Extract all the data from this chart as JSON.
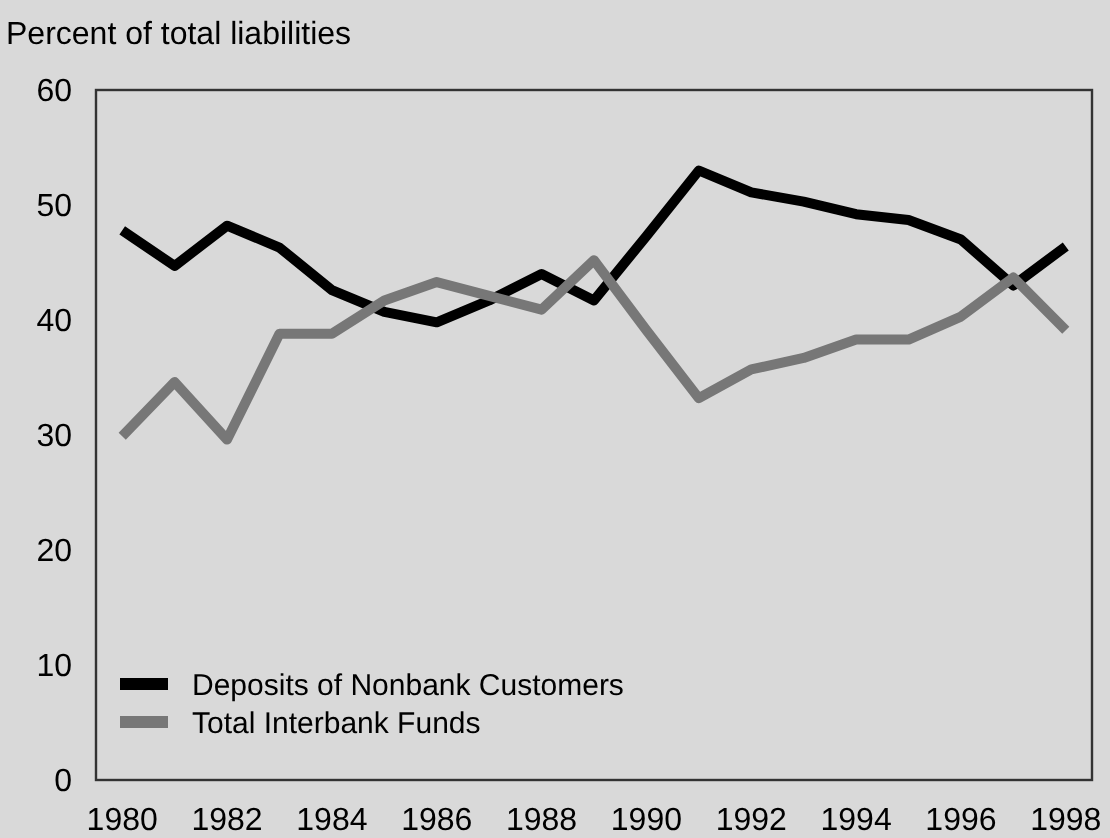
{
  "chart_data": {
    "type": "line",
    "ylabel": "Percent of total liabilities",
    "x": [
      1980,
      1981,
      1982,
      1983,
      1984,
      1985,
      1986,
      1987,
      1988,
      1989,
      1990,
      1991,
      1992,
      1993,
      1994,
      1995,
      1996,
      1997,
      1998
    ],
    "series": [
      {
        "name": "Deposits of Nonbank Customers",
        "color": "#000000",
        "values": [
          47.8,
          44.7,
          48.2,
          46.3,
          42.6,
          40.7,
          39.8,
          41.7,
          44,
          41.7,
          47.3,
          53,
          51.1,
          50.3,
          49.2,
          48.7,
          47,
          43,
          46.4
        ]
      },
      {
        "name": "Total Interbank Funds",
        "color": "#777777",
        "values": [
          29.9,
          34.6,
          29.6,
          38.8,
          38.8,
          41.7,
          43.3,
          42.1,
          40.9,
          45.2,
          39.1,
          33.2,
          35.7,
          36.7,
          38.3,
          38.3,
          40.3,
          43.7,
          39.1
        ]
      }
    ],
    "xlim": [
      1979.5,
      1998.5
    ],
    "xticks": [
      1980,
      1982,
      1984,
      1986,
      1988,
      1990,
      1992,
      1994,
      1996,
      1998
    ],
    "ylim": [
      0,
      60
    ],
    "yticks": [
      0,
      10,
      20,
      30,
      40,
      50,
      60
    ],
    "grid": false,
    "legend": "bottom left",
    "marker": "none",
    "line_style": "solid"
  }
}
